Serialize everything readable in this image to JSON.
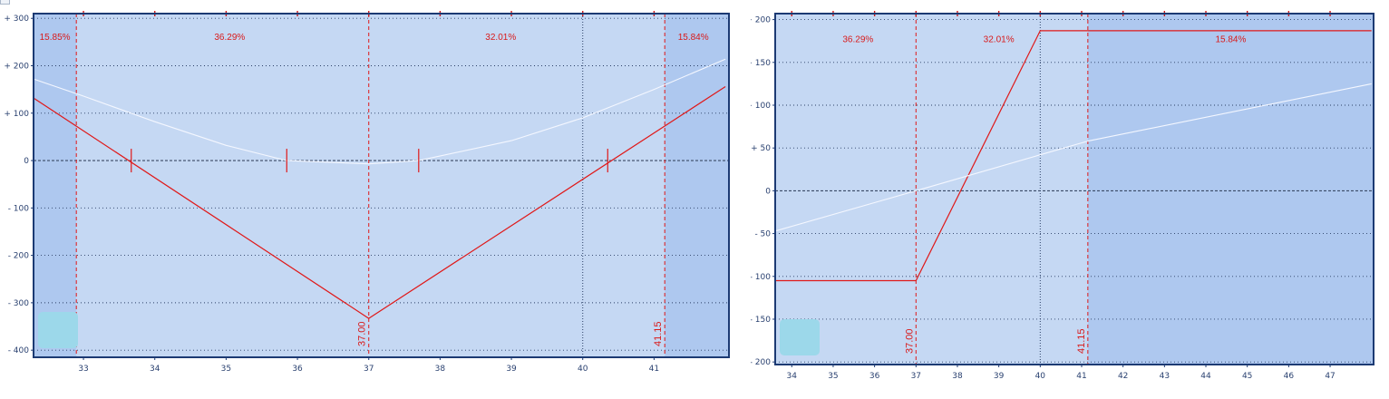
{
  "colors": {
    "background": "#c5d8f3",
    "shaded_region": "#aec8ef",
    "frame": "#1c3a73",
    "grid": "#2b3f66",
    "zero_line": "#3a4a66",
    "payoff_line": "#e01818",
    "theoretical_line": "#f4f7ff",
    "marker_dashed": "#e01818",
    "marker_dotted": "#2b3f66",
    "handle": "#9cd8ea"
  },
  "chart_data": [
    {
      "type": "line",
      "title": "",
      "xlabel": "",
      "ylabel": "",
      "xlim": [
        32.3,
        42.05
      ],
      "ylim": [
        -415,
        310
      ],
      "grid": true,
      "x_ticks": [
        "33",
        "34",
        "35",
        "36",
        "37",
        "38",
        "39",
        "40",
        "41"
      ],
      "y_ticks": [
        "+ 300",
        "+ 200",
        "+ 100",
        "0",
        "- 100",
        "- 200",
        "- 300",
        "- 400"
      ],
      "y_tick_values": [
        300,
        200,
        100,
        0,
        -100,
        -200,
        -300,
        -400
      ],
      "shaded_regions": [
        [
          32.3,
          32.9
        ],
        [
          41.15,
          42.05
        ]
      ],
      "region_labels": [
        {
          "text": "15.85%",
          "x": 32.6,
          "y": 262
        },
        {
          "text": "36.29%",
          "x": 35.05,
          "y": 262
        },
        {
          "text": "32.01%",
          "x": 38.85,
          "y": 262
        },
        {
          "text": "15.84%",
          "x": 41.55,
          "y": 262
        }
      ],
      "vertical_markers": [
        {
          "x": 32.9,
          "style": "dashed",
          "label": ""
        },
        {
          "x": 37.0,
          "style": "dashed",
          "label": "37.00"
        },
        {
          "x": 40.0,
          "style": "dotted",
          "label": ""
        },
        {
          "x": 41.15,
          "style": "dashed",
          "label": "41.15"
        }
      ],
      "tick_markers_x": [
        33.67,
        35.85,
        37.7,
        40.35
      ],
      "series": [
        {
          "kind": "payoff",
          "x": [
            32.3,
            37.0,
            42.0
          ],
          "y": [
            132,
            -333,
            156
          ]
        },
        {
          "kind": "theoretical",
          "x": [
            32.3,
            33.0,
            34.0,
            35.0,
            35.85,
            37.0,
            37.7,
            39.0,
            40.0,
            41.0,
            42.0
          ],
          "y": [
            172,
            136,
            82,
            32,
            0,
            -7,
            0,
            42,
            90,
            150,
            214
          ]
        }
      ]
    },
    {
      "type": "line",
      "title": "",
      "xlabel": "",
      "ylabel": "",
      "xlim": [
        33.6,
        48.05
      ],
      "ylim": [
        -203,
        207
      ],
      "grid": true,
      "x_ticks": [
        "34",
        "35",
        "36",
        "37",
        "38",
        "39",
        "40",
        "41",
        "42",
        "43",
        "44",
        "45",
        "46",
        "47"
      ],
      "y_ticks": [
        "+ 200",
        "+ 150",
        "+ 100",
        "+ 50",
        "0",
        "- 50",
        "- 100",
        "- 150",
        "- 200"
      ],
      "y_tick_values": [
        200,
        150,
        100,
        50,
        0,
        -50,
        -100,
        -150,
        -200
      ],
      "shaded_regions": [
        [
          41.15,
          48.05
        ]
      ],
      "region_labels": [
        {
          "text": "36.29%",
          "x": 35.6,
          "y": 178
        },
        {
          "text": "32.01%",
          "x": 39.0,
          "y": 178
        },
        {
          "text": "15.84%",
          "x": 44.6,
          "y": 178
        }
      ],
      "vertical_markers": [
        {
          "x": 37.0,
          "style": "dashed",
          "label": "37.00"
        },
        {
          "x": 40.0,
          "style": "dotted",
          "label": ""
        },
        {
          "x": 41.15,
          "style": "dashed",
          "label": "41.15"
        }
      ],
      "tick_markers_x": [],
      "series": [
        {
          "kind": "payoff",
          "x": [
            33.6,
            37.0,
            40.0,
            48.0
          ],
          "y": [
            -105,
            -105,
            187,
            187
          ]
        },
        {
          "kind": "theoretical",
          "x": [
            33.6,
            37.0,
            40.0,
            41.15,
            48.0
          ],
          "y": [
            -47,
            0,
            42,
            58,
            125
          ]
        }
      ]
    }
  ]
}
